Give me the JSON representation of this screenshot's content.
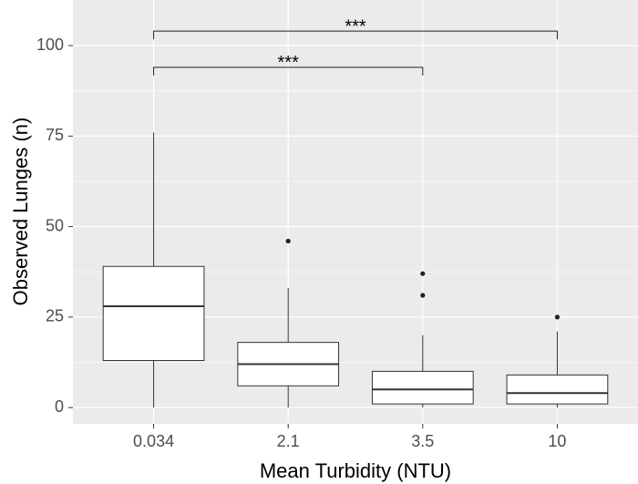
{
  "chart_data": {
    "type": "box",
    "x_label": "Mean Turbidity (NTU)",
    "y_label": "Observed Lunges (n)",
    "categories": [
      "0.034",
      "2.1",
      "3.5",
      "10"
    ],
    "boxes": [
      {
        "low": 0,
        "q1": 13,
        "median": 28,
        "q3": 39,
        "high": 76,
        "outliers": []
      },
      {
        "low": 0,
        "q1": 6,
        "median": 12,
        "q3": 18,
        "high": 33,
        "outliers": [
          46
        ]
      },
      {
        "low": 0,
        "q1": 1,
        "median": 5,
        "q3": 10,
        "high": 20,
        "outliers": [
          31,
          37
        ]
      },
      {
        "low": 0,
        "q1": 1,
        "median": 4,
        "q3": 9,
        "high": 21,
        "outliers": [
          25
        ]
      }
    ],
    "annotations": [
      {
        "text": "***",
        "from": "0.034",
        "to": "10",
        "y": 104
      },
      {
        "text": "***",
        "from": "0.034",
        "to": "3.5",
        "y": 94
      }
    ],
    "ylim": [
      -4.5,
      112.6
    ],
    "yticks": [
      0,
      25,
      50,
      75,
      100
    ],
    "grid": true,
    "panel_color": "#ebebeb",
    "box_color": "#ffffff"
  }
}
